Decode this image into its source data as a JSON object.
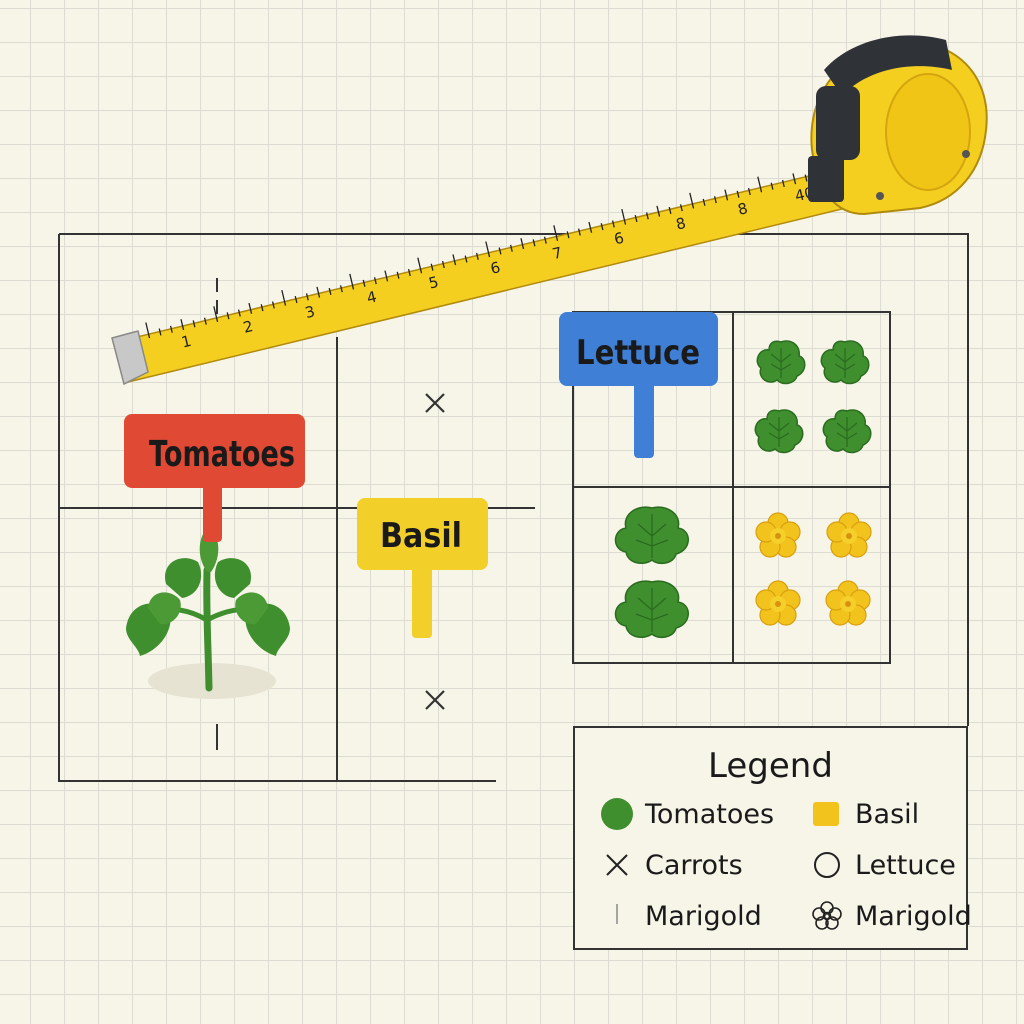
{
  "labels": {
    "tomatoes": "Tomatoes",
    "basil": "Basil",
    "lettuce": "Lettuce"
  },
  "tape": {
    "ticks": [
      "1",
      "2",
      "3",
      "4",
      "5",
      "6",
      "7",
      "6",
      "8",
      "8",
      "40"
    ]
  },
  "legend": {
    "title": "Legend",
    "items": [
      {
        "label": "Tomatoes",
        "symbol": "green-circle"
      },
      {
        "label": "Basil",
        "symbol": "yellow-square"
      },
      {
        "label": "Carrots",
        "symbol": "x-mark"
      },
      {
        "label": "Lettuce",
        "symbol": "open-circle"
      },
      {
        "label": "Marigold",
        "symbol": "thin-line"
      },
      {
        "label": "Marigold",
        "symbol": "flower-outline"
      }
    ]
  },
  "colors": {
    "tomatoes_tag": "#e04a35",
    "basil_tag": "#f3cf2a",
    "lettuce_tag": "#3f7fd6",
    "plant_green": "#3f8f2e",
    "marigold_yellow": "#f2c31c",
    "tape_yellow": "#f5cf1f"
  }
}
